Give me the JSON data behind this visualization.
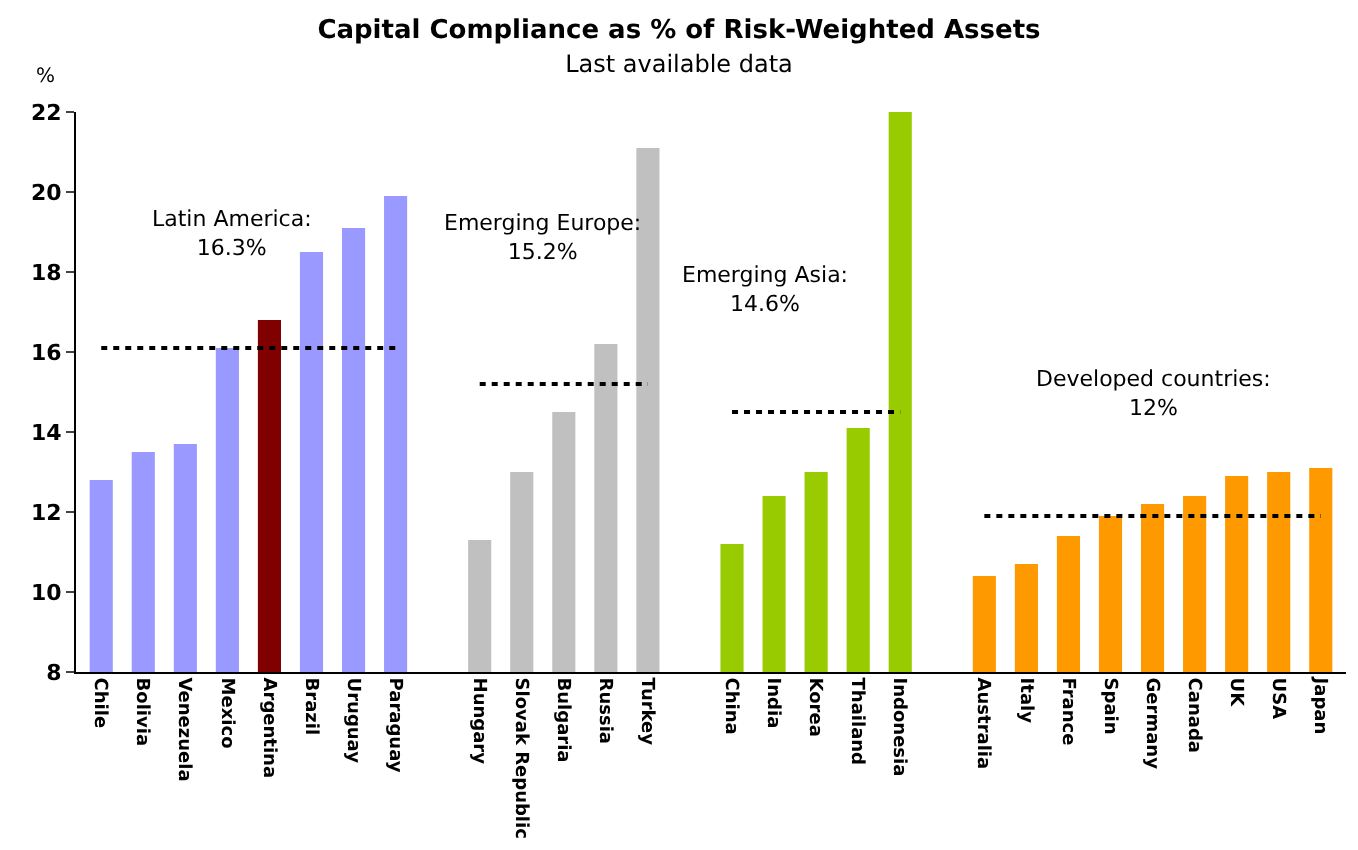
{
  "chart_data": {
    "type": "bar",
    "title": "Capital Compliance as % of Risk-Weighted Assets",
    "subtitle": "Last available data",
    "ylabel": "%",
    "categories": [
      "Chile",
      "Bolivia",
      "Venezuela",
      "Mexico",
      "Argentina",
      "Brazil",
      "Uruguay",
      "Paraguay",
      null,
      "Hungary",
      "Slovak Republic",
      "Bulgaria",
      "Russia",
      "Turkey",
      null,
      "China",
      "India",
      "Korea",
      "Thailand",
      "Indonesia",
      null,
      "Australia",
      "Italy",
      "France",
      "Spain",
      "Germany",
      "Canada",
      "UK",
      "USA",
      "Japan"
    ],
    "series": [
      {
        "values": [
          12.8,
          13.5,
          13.7,
          16.1,
          16.8,
          18.5,
          19.1,
          19.9,
          null,
          11.3,
          13.0,
          14.5,
          16.2,
          21.1,
          null,
          11.2,
          12.4,
          13.0,
          14.1,
          22.0,
          null,
          10.4,
          10.7,
          11.4,
          11.9,
          12.2,
          12.4,
          12.9,
          13.0,
          13.1
        ],
        "colors": [
          "#9999ff",
          "#9999ff",
          "#9999ff",
          "#9999ff",
          "#800000",
          "#9999ff",
          "#9999ff",
          "#9999ff",
          null,
          "#c0c0c0",
          "#c0c0c0",
          "#c0c0c0",
          "#c0c0c0",
          "#c0c0c0",
          null,
          "#99cc00",
          "#99cc00",
          "#99cc00",
          "#99cc00",
          "#99cc00",
          null,
          "#ff9900",
          "#ff9900",
          "#ff9900",
          "#ff9900",
          "#ff9900",
          "#ff9900",
          "#ff9900",
          "#ff9900",
          "#ff9900"
        ]
      },
      {
        "type": "line",
        "x": [
          "Chile",
          "Paraguay"
        ],
        "values": [
          16.1,
          16.1
        ],
        "color": "#000000",
        "line_style": "dotted",
        "marker": "none"
      },
      {
        "type": "line",
        "x": [
          "Hungary",
          "Turkey"
        ],
        "values": [
          15.2,
          15.2
        ],
        "color": "#000000",
        "line_style": "dotted",
        "marker": "none"
      },
      {
        "type": "line",
        "x": [
          "China",
          "Indonesia"
        ],
        "values": [
          14.5,
          14.5
        ],
        "color": "#000000",
        "line_style": "dotted",
        "marker": "none"
      },
      {
        "type": "line",
        "x": [
          "Australia",
          "Japan"
        ],
        "values": [
          11.9,
          11.9
        ],
        "color": "#000000",
        "line_style": "dotted",
        "marker": "none"
      }
    ],
    "annotations": [
      "Latin America:\n16.3%",
      "Emerging Europe:\n15.2%",
      "Emerging Asia:\n14.6%",
      "Developed countries:\n12%"
    ],
    "ylim": [
      8,
      22
    ],
    "yticks": [
      8,
      10,
      12,
      14,
      16,
      18,
      20,
      22
    ]
  }
}
